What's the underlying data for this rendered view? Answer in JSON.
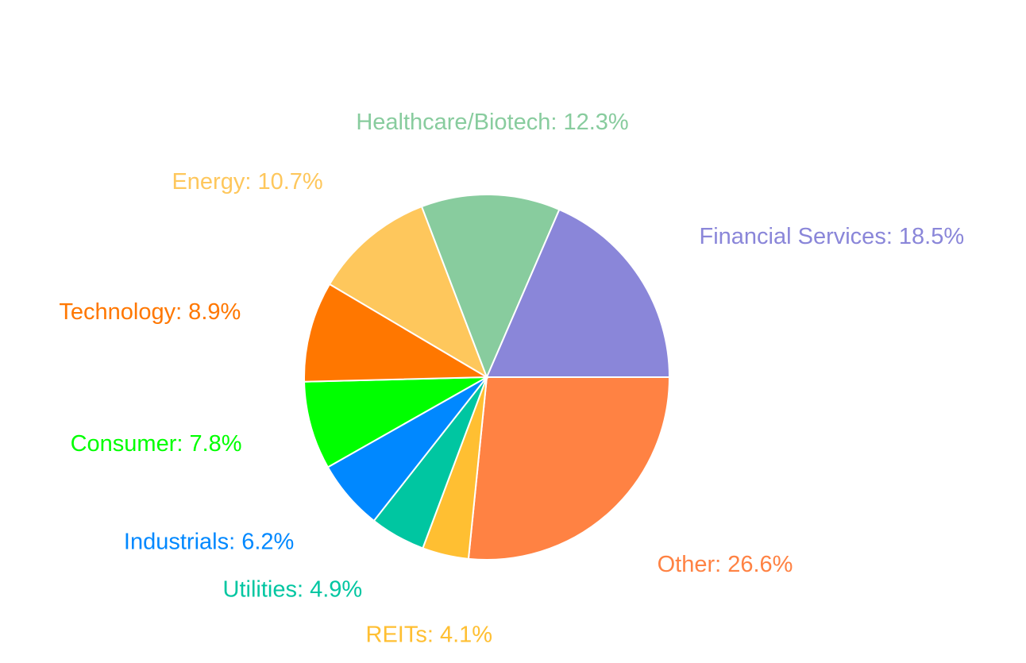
{
  "chart_data": {
    "type": "pie",
    "title": "",
    "start": "3 o'clock",
    "direction": "clockwise",
    "legend": "none",
    "label_format": "{category}: {value}%",
    "slices": [
      {
        "category": "Other",
        "value": 26.6,
        "color": "#FF8243"
      },
      {
        "category": "REITs",
        "value": 4.1,
        "color": "#FFBF32"
      },
      {
        "category": "Utilities",
        "value": 4.9,
        "color": "#00C6A1"
      },
      {
        "category": "Industrials",
        "value": 6.2,
        "color": "#0088FF"
      },
      {
        "category": "Consumer",
        "value": 7.8,
        "color": "#00FF00"
      },
      {
        "category": "Technology",
        "value": 8.9,
        "color": "#FF7700"
      },
      {
        "category": "Energy",
        "value": 10.7,
        "color": "#FEC75C"
      },
      {
        "category": "Healthcare/Biotech",
        "value": 12.3,
        "color": "#88CC9E"
      },
      {
        "category": "Financial Services",
        "value": 18.5,
        "color": "#8A86D9"
      }
    ]
  }
}
